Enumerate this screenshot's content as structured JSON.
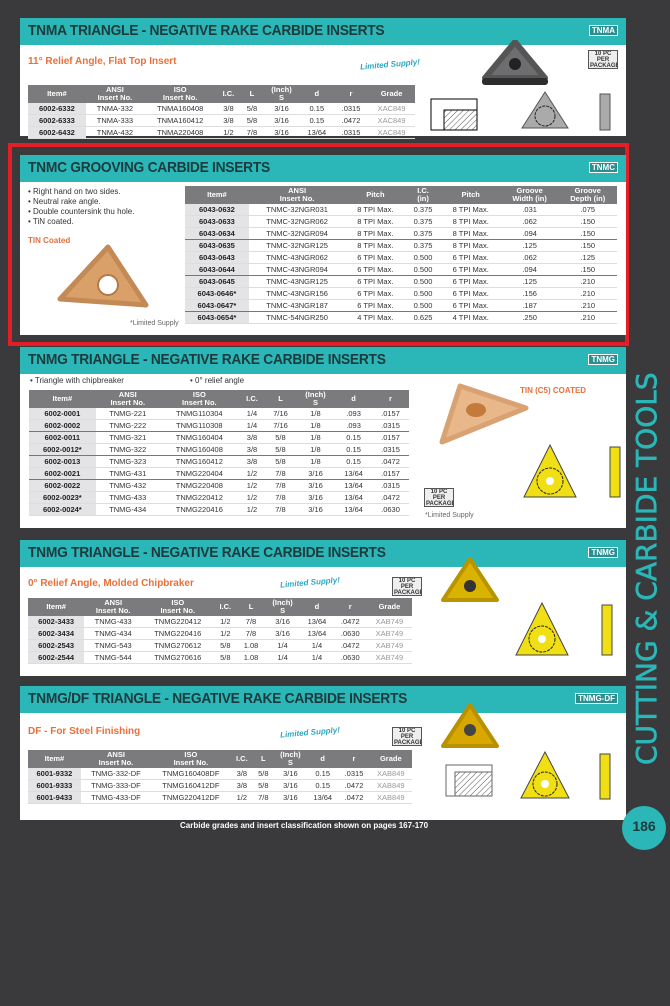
{
  "side_title": "CUTTING & CARBIDE TOOLS",
  "footer": "Carbide grades and insert classification shown on pages 167-170",
  "page_number": "186",
  "colors": {
    "accent": "#2bb6b8",
    "highlight": "#e41e26",
    "subtitle": "#e8703a"
  },
  "pack_badge": "10 PC PER PACKAGE",
  "sections": [
    {
      "title": "TNMA TRIANGLE - NEGATIVE RAKE CARBIDE INSERTS",
      "badge": "TNMA",
      "subtitle": "11° Relief Angle, Flat Top Insert",
      "limited": "Limited Supply!",
      "headers": [
        "Item#",
        "ANSI\nInsert No.",
        "ISO\nInsert No.",
        "I.C.",
        "L",
        "(Inch)\nS",
        "d",
        "r",
        "Grade"
      ],
      "rows": [
        [
          "6002-6332",
          "TNMA-332",
          "TNMA160408",
          "3/8",
          "5/8",
          "3/16",
          "0.15",
          ".0315",
          "XAC849"
        ],
        [
          "6002-6333",
          "TNMA-333",
          "TNMA160412",
          "3/8",
          "5/8",
          "3/16",
          "0.15",
          ".0472",
          "XAC849"
        ],
        [
          "6002-6432",
          "TNMA-432",
          "TNMA220408",
          "1/2",
          "7/8",
          "3/16",
          "13/64",
          ".0315",
          "XAC849"
        ]
      ]
    },
    {
      "title": "TNMC GROOVING CARBIDE INSERTS",
      "badge": "TNMC",
      "bullets": [
        "Right hand on two sides.",
        "Neutral rake angle.",
        "Double countersink thu hole.",
        "TiN coated."
      ],
      "coating": "TIN Coated",
      "note": "*Limited Supply",
      "headers": [
        "Item#",
        "ANSI\nInsert No.",
        "Pitch",
        "I.C.\n(in)",
        "Pitch",
        "Groove\nWidth (in)",
        "Groove\nDepth (in)"
      ],
      "rows": [
        [
          "6043-0632",
          "TNMC-32NGR031",
          "8 TPI Max.",
          "0.375",
          "8 TPI Max.",
          ".031",
          ".075"
        ],
        [
          "6043-0633",
          "TNMC-32NGR062",
          "8 TPI Max.",
          "0.375",
          "8 TPI Max.",
          ".062",
          ".150"
        ],
        [
          "6043-0634",
          "TNMC-32NGR094",
          "8 TPI Max.",
          "0.375",
          "8 TPI Max.",
          ".094",
          ".150"
        ],
        [
          "6043-0635",
          "TNMC-32NGR125",
          "8 TPI Max.",
          "0.375",
          "8 TPI Max.",
          ".125",
          ".150"
        ],
        [
          "6043-0643",
          "TNMC-43NGR062",
          "6 TPI Max.",
          "0.500",
          "6 TPI Max.",
          ".062",
          ".125"
        ],
        [
          "6043-0644",
          "TNMC-43NGR094",
          "6 TPI Max.",
          "0.500",
          "6 TPI Max.",
          ".094",
          ".150"
        ],
        [
          "6043-0645",
          "TNMC-43NGR125",
          "6 TPI Max.",
          "0.500",
          "6 TPI Max.",
          ".125",
          ".210"
        ],
        [
          "6043-0646*",
          "TNMC-43NGR156",
          "6 TPI Max.",
          "0.500",
          "6 TPI Max.",
          ".156",
          ".210"
        ],
        [
          "6043-0647*",
          "TNMC-43NGR187",
          "6 TPI Max.",
          "0.500",
          "6 TPI Max.",
          ".187",
          ".210"
        ],
        [
          "6043-0654*",
          "TNMC-54NGR250",
          "4 TPI Max.",
          "0.625",
          "4 TPI Max.",
          ".250",
          ".210"
        ]
      ],
      "groups": [
        2,
        5,
        8
      ]
    },
    {
      "title": "TNMG TRIANGLE - NEGATIVE RAKE CARBIDE INSERTS",
      "badge": "TNMG",
      "bullets": [
        "Triangle with chipbreaker",
        "0° relief angle"
      ],
      "coating": "TIN (C5) COATED",
      "note": "*Limited Supply",
      "headers": [
        "Item#",
        "ANSI\nInsert No.",
        "ISO\nInsert No.",
        "I.C.",
        "L",
        "(Inch)\nS",
        "d",
        "r"
      ],
      "rows": [
        [
          "6002-0001",
          "TNMG-221",
          "TNMG110304",
          "1/4",
          "7/16",
          "1/8",
          ".093",
          ".0157"
        ],
        [
          "6002-0002",
          "TNMG-222",
          "TNMG110308",
          "1/4",
          "7/16",
          "1/8",
          ".093",
          ".0315"
        ],
        [
          "6002-0011",
          "TNMG-321",
          "TNMG160404",
          "3/8",
          "5/8",
          "1/8",
          "0.15",
          ".0157"
        ],
        [
          "6002-0012*",
          "TNMG-322",
          "TNMG160408",
          "3/8",
          "5/8",
          "1/8",
          "0.15",
          ".0315"
        ],
        [
          "6002-0013",
          "TNMG-323",
          "TNMG160412",
          "3/8",
          "5/8",
          "1/8",
          "0.15",
          ".0472"
        ],
        [
          "6002-0021",
          "TNMG-431",
          "TNMG220404",
          "1/2",
          "7/8",
          "3/16",
          "13/64",
          ".0157"
        ],
        [
          "6002-0022",
          "TNMG-432",
          "TNMG220408",
          "1/2",
          "7/8",
          "3/16",
          "13/64",
          ".0315"
        ],
        [
          "6002-0023*",
          "TNMG-433",
          "TNMG220412",
          "1/2",
          "7/8",
          "3/16",
          "13/64",
          ".0472"
        ],
        [
          "6002-0024*",
          "TNMG-434",
          "TNMG220416",
          "1/2",
          "7/8",
          "3/16",
          "13/64",
          ".0630"
        ]
      ],
      "groups": [
        1,
        3,
        5
      ]
    },
    {
      "title": "TNMG TRIANGLE - NEGATIVE RAKE CARBIDE INSERTS",
      "badge": "TNMG",
      "subtitle": "0° Relief Angle, Molded Chipbraker",
      "limited": "Limited Supply!",
      "headers": [
        "Item#",
        "ANSI\nInsert No.",
        "ISO\nInsert No.",
        "I.C.",
        "L",
        "(Inch)\nS",
        "d",
        "r",
        "Grade"
      ],
      "rows": [
        [
          "6002-3433",
          "TNMG-433",
          "TNMG220412",
          "1/2",
          "7/8",
          "3/16",
          "13/64",
          ".0472",
          "XAB749"
        ],
        [
          "6002-3434",
          "TNMG-434",
          "TNMG220416",
          "1/2",
          "7/8",
          "3/16",
          "13/64",
          ".0630",
          "XAB749"
        ],
        [
          "6002-2543",
          "TNMG-543",
          "TNMG270612",
          "5/8",
          "1.08",
          "1/4",
          "1/4",
          ".0472",
          "XAB749"
        ],
        [
          "6002-2544",
          "TNMG-544",
          "TNMG270616",
          "5/8",
          "1.08",
          "1/4",
          "1/4",
          ".0630",
          "XAB749"
        ]
      ]
    },
    {
      "title": "TNMG/DF TRIANGLE - NEGATIVE RAKE CARBIDE INSERTS",
      "badge": "TNMG-DF",
      "subtitle": "DF - For Steel Finishing",
      "limited": "Limited Supply!",
      "headers": [
        "Item#",
        "ANSI\nInsert No.",
        "ISO\nInsert No.",
        "I.C.",
        "L",
        "(Inch)\nS",
        "d",
        "r",
        "Grade"
      ],
      "rows": [
        [
          "6001-9332",
          "TNMG-332-DF",
          "TNMG160408DF",
          "3/8",
          "5/8",
          "3/16",
          "0.15",
          ".0315",
          "XAB849"
        ],
        [
          "6001-9333",
          "TNMG-333-DF",
          "TNMG160412DF",
          "3/8",
          "5/8",
          "3/16",
          "0.15",
          ".0472",
          "XAB849"
        ],
        [
          "6001-9433",
          "TNMG-433-DF",
          "TNMG220412DF",
          "1/2",
          "7/8",
          "3/16",
          "13/64",
          ".0472",
          "XAB849"
        ]
      ]
    }
  ]
}
